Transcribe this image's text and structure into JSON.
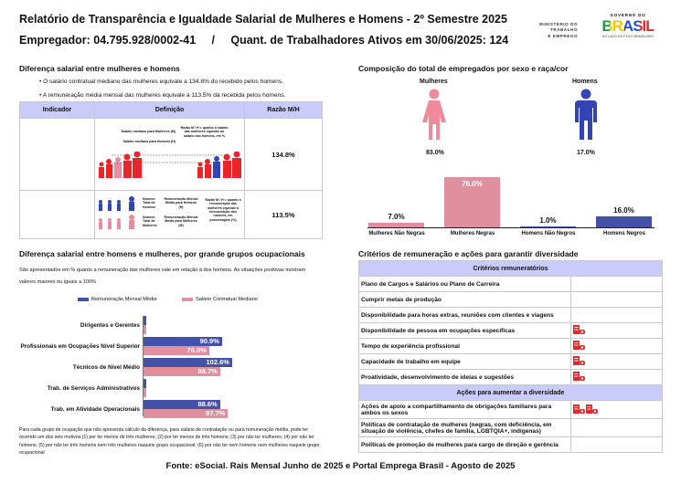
{
  "header": {
    "title": "Relatório de Transparência e Igualdade Salarial de Mulheres e Homens - 2º Semestre 2025",
    "subtitle": "Empregador: 04.795.928/0002-41     /     Quant. de Trabalhadores Ativos em 30/06/2025: 124",
    "logo_ministry": [
      "MINISTÉRIO DO",
      "TRABALHO",
      "E EMPREGO"
    ],
    "logo_gov": "GOVERNO DO",
    "logo_brasil": "BRASIL",
    "logo_tagline": "DO LADO DO POVO BRASILEIRO"
  },
  "diff": {
    "title": "Diferença salarial entre mulheres e homens",
    "bullets": [
      "• O salário contratual mediano das mulheres equivale a 134.8% do recebido pelos homens.",
      "• A remuneração média mensal das mulheres equivale a 113.5% da recebida pelos homens."
    ],
    "columns": [
      "Indicador",
      "Definição",
      "Razão M/H"
    ],
    "rows": [
      {
        "indicador": "Salário Contratual Mediano",
        "value": "134.8%",
        "def_a": "Salário mediano para Mulheres (M)",
        "def_b": "Salário mediano para Homens (H)",
        "def_c": "Razão M / H = quanto o salário das mulheres equivale ao salário dos homens, em %"
      },
      {
        "indicador": "Remuneração Mensal Média",
        "value": "113.5%",
        "def_a": "Número Total de Homens",
        "def_b": "Remuneração Mensal Média para Homens (H)",
        "def_c": "Número Total de Mulheres",
        "def_d": "Remuneração Mensal Média para Mulheres (M)",
        "def_e": "Razão M / H = quanto a remuneração das mulheres equivale à remuneração dos homens, em porcentagem (%)"
      }
    ]
  },
  "comp": {
    "title": "Composição do total de empregados por sexo e raça/cor",
    "women_label": "Mulheres",
    "men_label": "Homens",
    "women_pct": "83.0%",
    "men_pct": "17.0%"
  },
  "chart_data": [
    {
      "type": "bar",
      "orientation": "vertical",
      "title": "Composição do total de empregados por sexo e raça/cor",
      "categories": [
        "Mulheres Não Negras",
        "Mulheres Negras",
        "Homens Não Negros",
        "Homens Negros"
      ],
      "values": [
        7.0,
        76.0,
        1.0,
        16.0
      ],
      "labels": [
        "7.0%",
        "76.0%",
        "1.0%",
        "16.0%"
      ],
      "colors": [
        "#e08f9e",
        "#e08f9e",
        "#4352a8",
        "#4352a8"
      ]
    },
    {
      "type": "bar",
      "orientation": "horizontal",
      "title": "Diferença salarial entre homens e mulheres, por grande grupos ocupacionais",
      "subtitle": "São apresentados em % quanto a remuneração das mulheres vale em relação à dos homens. As situações positivas mostram valores maiores ou iguais a 100%",
      "categories": [
        "Dirigentes e Gerentes",
        "Profissionais em Ocupações Nível Superior",
        "Técnicos de Nível Médio",
        "Trab. de Serviços Administrativos",
        "Trab. em Atividade Operacionais"
      ],
      "series": [
        {
          "name": "Remuneração Mensal Média",
          "color": "#4352a8",
          "values": [
            null,
            90.9,
            102.6,
            null,
            88.6
          ],
          "labels": [
            "",
            "90.9%",
            "102.6%",
            "",
            "88.6%"
          ]
        },
        {
          "name": "Salário Contratual Mediano",
          "color": "#e08f9e",
          "values": [
            null,
            76.0,
            88.7,
            null,
            97.7
          ],
          "labels": [
            "",
            "76.0%",
            "88.7%",
            "",
            "97.7%"
          ]
        }
      ],
      "legend": "top",
      "footnote": "Para cada grupo de ocupação que não apresenta cálculo da diferença, para salário de contratação ou para remuneração média, pode ter ocorrido um dos seis motivos:(1) por ter menos de três mulheres; (2) por ter menos de três homens; (3) por não ter mulheres; (4) por não ter homens; (5) por não ter três homens nem três mulheres naquele grupo ocupacional; (6) por não ter nem homens nem mulheres naquele grupo ocupacional"
    }
  ],
  "criteria": {
    "title": "Critérios de remuneração e ações para garantir diversidade",
    "section1": "Critérios remuneratórios",
    "items1": [
      {
        "label": "Plano de Cargos e Salários ou Plano de Carreira",
        "icons": 0
      },
      {
        "label": "Cumprir metas de produção",
        "icons": 0
      },
      {
        "label": "Disponibilidade para horas extras, reuniões com clientes e viagens",
        "icons": 0
      },
      {
        "label": "Disponibilidade de pessoa em ocupações específicas",
        "icons": 1
      },
      {
        "label": "Tempo de experiência profissional",
        "icons": 1
      },
      {
        "label": "Capacidade de trabalho em equipe",
        "icons": 1
      },
      {
        "label": "Proatividade, desenvolvimento de ideias e sugestões",
        "icons": 1
      }
    ],
    "section2": "Ações para aumentar a diversidade",
    "items2": [
      {
        "label": "Ações de apoio a compartilhamento de obrigações familiares para ambos os sexos",
        "icons": 2
      },
      {
        "label": "Políticas de contratação de mulheres (negras, com deficiência, em situação de violência, chefes de família, LGBTQIA+, indígenas)",
        "icons": 0
      },
      {
        "label": "Políticas de promoção de mulheres para cargo de direção e gerência",
        "icons": 0
      }
    ],
    "icon_name": "company-icon",
    "icon_color": "#e8262a"
  },
  "footer": "Fonte: eSocial. Rais Mensal Junho de 2025 e Portal Emprega Brasil - Agosto de 2025"
}
